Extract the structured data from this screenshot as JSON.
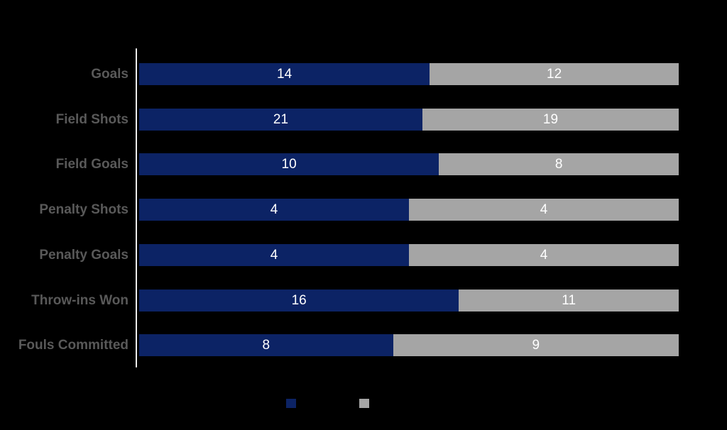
{
  "chart_data": {
    "type": "bar",
    "orientation": "horizontal",
    "stacked": true,
    "title": "",
    "categories": [
      "Goals",
      "Field Shots",
      "Field Goals",
      "Penalty Shots",
      "Penalty Goals",
      "Throw-ins Won",
      "Fouls Committed"
    ],
    "series": [
      {
        "name": "",
        "color": "#0c2365",
        "values": [
          14,
          21,
          10,
          4,
          4,
          16,
          8
        ]
      },
      {
        "name": "",
        "color": "#a5a5a5",
        "values": [
          12,
          19,
          8,
          4,
          4,
          11,
          9
        ]
      }
    ],
    "value_labels": "inside-center",
    "value_label_color": "#ffffff",
    "category_label_color": "#595959",
    "axis_line_color": "#ececec",
    "background_color": "#000000",
    "grid": false,
    "legend_position": "bottom-center",
    "legend_labels_visible": false,
    "bars_full_width": true
  }
}
